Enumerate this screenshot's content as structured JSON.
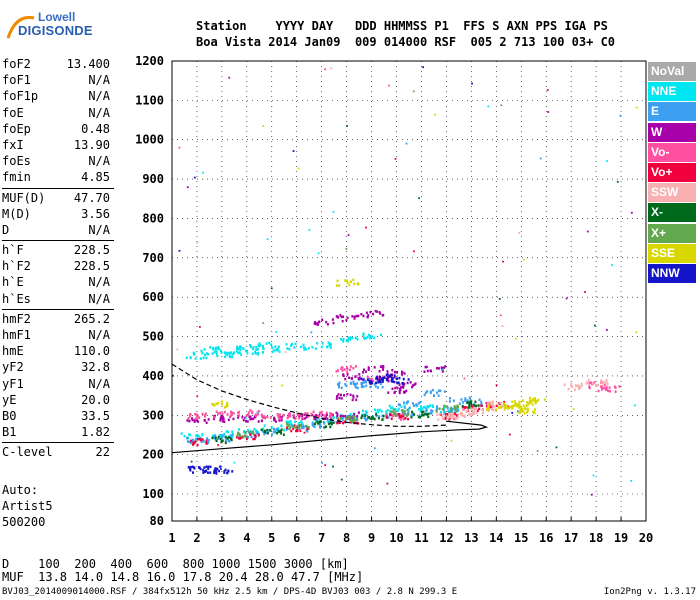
{
  "logo": {
    "line1": "Lowell",
    "line2": "DIGISONDE"
  },
  "header": {
    "row1": "Station    YYYY DAY   DDD HHMMSS P1  FFS S AXN PPS IGA PS",
    "row2": "Boa Vista 2014 Jan09  009 014000 RSF  005 2 713 100 03+ C0"
  },
  "params": [
    {
      "k": "foF2",
      "v": "13.400"
    },
    {
      "k": "foF1",
      "v": "N/A"
    },
    {
      "k": "foF1p",
      "v": "N/A"
    },
    {
      "k": "foE",
      "v": "N/A"
    },
    {
      "k": "foEp",
      "v": "0.48"
    },
    {
      "k": "fxI",
      "v": "13.90"
    },
    {
      "k": "foEs",
      "v": "N/A"
    },
    {
      "k": "fmin",
      "v": "4.85"
    },
    {
      "k": "MUF(D)",
      "v": "47.70"
    },
    {
      "k": "M(D)",
      "v": "3.56"
    },
    {
      "k": "D",
      "v": "N/A"
    },
    {
      "k": "h`F",
      "v": "228.5"
    },
    {
      "k": "h`F2",
      "v": "228.5"
    },
    {
      "k": "h`E",
      "v": "N/A"
    },
    {
      "k": "h`Es",
      "v": "N/A"
    },
    {
      "k": "hmF2",
      "v": "265.2"
    },
    {
      "k": "hmF1",
      "v": "N/A"
    },
    {
      "k": "hmE",
      "v": "110.0"
    },
    {
      "k": "yF2",
      "v": "32.8"
    },
    {
      "k": "yF1",
      "v": "N/A"
    },
    {
      "k": "yE",
      "v": "20.0"
    },
    {
      "k": "B0",
      "v": "33.5"
    },
    {
      "k": "B1",
      "v": "1.82"
    },
    {
      "k": "C-level",
      "v": "22"
    }
  ],
  "auto": {
    "l1": "Auto:",
    "l2": "Artist5",
    "l3": "500200"
  },
  "footer": {
    "drow": "D    100  200  400  600  800 1000 1500 3000 [km]",
    "mrow": "MUF  13.8 14.0 14.8 16.0 17.8 20.4 28.0 47.7 [MHz]",
    "file": "BVJ03_2014009014000.RSF / 384fx512h 50 kHz 2.5 km / DPS-4D BVJ03 003 / 2.8 N 299.3 E",
    "version": "Ion2Png v. 1.3.17"
  },
  "legend": [
    {
      "label": "NoVal",
      "color": "#a9a9a9"
    },
    {
      "label": "NNE",
      "color": "#00e6f0"
    },
    {
      "label": "E",
      "color": "#3d9ff0"
    },
    {
      "label": "W",
      "color": "#a800a8"
    },
    {
      "label": "Vo-",
      "color": "#ff4fa0"
    },
    {
      "label": "Vo+",
      "color": "#f0003c"
    },
    {
      "label": "SSW",
      "color": "#f8b0b0"
    },
    {
      "label": "X-",
      "color": "#006a1c"
    },
    {
      "label": "X+",
      "color": "#62a84c"
    },
    {
      "label": "SSE",
      "color": "#d8d800"
    },
    {
      "label": "NNW",
      "color": "#1414c8"
    }
  ],
  "chart_data": {
    "type": "scatter",
    "xlim": [
      1,
      20
    ],
    "ylim": [
      80,
      1200
    ],
    "x_ticks": [
      1,
      2,
      3,
      4,
      5,
      6,
      7,
      8,
      9,
      10,
      11,
      12,
      13,
      14,
      15,
      16,
      17,
      18,
      19,
      20
    ],
    "y_ticks": [
      80,
      100,
      200,
      300,
      400,
      500,
      600,
      700,
      800,
      900,
      1000,
      1100,
      1200
    ],
    "grid": "dotted",
    "legend_position": "right",
    "series": [
      {
        "name": "NNE",
        "color": "#00e6f0",
        "points": [
          [
            1.8,
            250
          ],
          [
            3,
            255
          ],
          [
            4,
            262
          ],
          [
            5,
            270
          ],
          [
            6,
            280
          ],
          [
            7,
            290
          ],
          [
            8,
            300
          ],
          [
            9,
            310
          ],
          [
            10,
            320
          ],
          [
            11,
            320
          ],
          [
            12,
            315
          ],
          [
            2,
            455
          ],
          [
            3,
            458
          ],
          [
            4,
            465
          ],
          [
            5,
            470
          ],
          [
            6,
            478
          ],
          [
            7,
            480
          ],
          [
            8,
            495
          ],
          [
            9,
            505
          ],
          [
            2.5,
            470
          ],
          [
            3.5,
            470
          ],
          [
            4.5,
            480
          ]
        ]
      },
      {
        "name": "E",
        "color": "#3d9ff0",
        "points": [
          [
            2,
            240
          ],
          [
            3,
            245
          ],
          [
            4,
            255
          ],
          [
            5,
            262
          ],
          [
            6,
            270
          ],
          [
            7,
            280
          ],
          [
            8,
            290
          ],
          [
            9,
            298
          ],
          [
            10,
            305
          ],
          [
            11,
            310
          ],
          [
            12,
            320
          ],
          [
            13,
            335
          ],
          [
            8,
            380
          ],
          [
            8.5,
            390
          ],
          [
            9,
            380
          ],
          [
            10.5,
            330
          ],
          [
            11.5,
            360
          ],
          [
            12.5,
            340
          ]
        ]
      },
      {
        "name": "W",
        "color": "#a800a8",
        "points": [
          [
            2,
            290
          ],
          [
            3,
            295
          ],
          [
            4,
            292
          ],
          [
            5,
            295
          ],
          [
            6,
            300
          ],
          [
            7,
            298
          ],
          [
            8,
            302
          ],
          [
            8,
            350
          ],
          [
            8.2,
            400
          ],
          [
            9,
            420
          ],
          [
            10,
            410
          ],
          [
            10.5,
            380
          ],
          [
            11.5,
            420
          ],
          [
            7,
            540
          ],
          [
            8,
            550
          ],
          [
            9,
            560
          ],
          [
            10,
            365
          ],
          [
            9.5,
            395
          ]
        ]
      },
      {
        "name": "Vo-",
        "color": "#ff4fa0",
        "points": [
          [
            2,
            300
          ],
          [
            3,
            305
          ],
          [
            4,
            310
          ],
          [
            5,
            298
          ],
          [
            6,
            302
          ],
          [
            7,
            305
          ],
          [
            8,
            420
          ],
          [
            9,
            395
          ],
          [
            10,
            300
          ],
          [
            18,
            380
          ],
          [
            18.5,
            370
          ]
        ]
      },
      {
        "name": "Vo+",
        "color": "#f0003c",
        "points": [
          [
            2,
            235
          ],
          [
            4,
            250
          ],
          [
            6,
            270
          ],
          [
            8,
            290
          ],
          [
            10,
            300
          ],
          [
            12,
            300
          ],
          [
            13,
            320
          ],
          [
            14,
            330
          ]
        ]
      },
      {
        "name": "SSW",
        "color": "#f8b0b0",
        "points": [
          [
            12,
            300
          ],
          [
            12.5,
            305
          ],
          [
            13,
            310
          ],
          [
            13.5,
            320
          ],
          [
            14,
            330
          ],
          [
            17,
            375
          ],
          [
            18,
            385
          ]
        ]
      },
      {
        "name": "X-",
        "color": "#006a1c",
        "points": [
          [
            3,
            240
          ],
          [
            5,
            260
          ],
          [
            7,
            280
          ],
          [
            9,
            300
          ],
          [
            11,
            305
          ],
          [
            13,
            330
          ]
        ]
      },
      {
        "name": "X+",
        "color": "#62a84c",
        "points": [
          [
            4,
            255
          ],
          [
            6,
            275
          ],
          [
            8,
            295
          ],
          [
            10,
            310
          ],
          [
            12,
            320
          ]
        ]
      },
      {
        "name": "SSE",
        "color": "#d8d800",
        "points": [
          [
            14,
            325
          ],
          [
            14.5,
            330
          ],
          [
            15,
            335
          ],
          [
            15.5,
            340
          ],
          [
            14.8,
            320
          ],
          [
            15.2,
            315
          ],
          [
            3,
            330
          ],
          [
            8,
            640
          ]
        ]
      },
      {
        "name": "NNW",
        "color": "#1414c8",
        "points": [
          [
            2,
            165
          ],
          [
            2.5,
            165
          ],
          [
            3,
            163
          ],
          [
            9,
            390
          ],
          [
            9.5,
            400
          ],
          [
            10,
            390
          ]
        ]
      }
    ]
  }
}
